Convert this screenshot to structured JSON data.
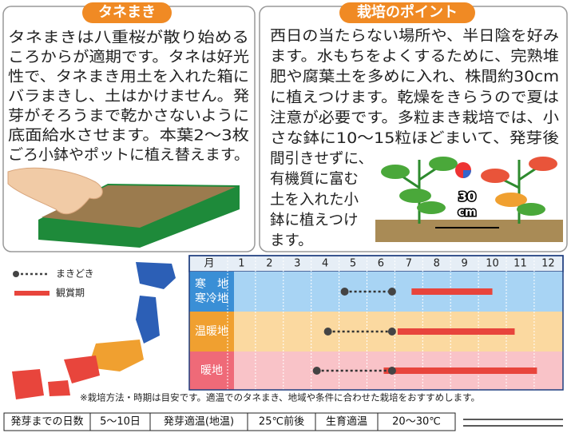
{
  "sowing_panel": {
    "title": "タネまき",
    "lines": [
      "タネまきは八重桜が散り始める",
      "ころからが適期です。タネは好光",
      "性で、タネまき用土を入れた箱に",
      "バラまきし、土はかけません。発",
      "芽がそろうまで乾かさないように",
      "底面給水させます。本葉2～3枚",
      "ごろ小鉢やポットに植え替えます。"
    ]
  },
  "points_panel": {
    "title": "栽培のポイント",
    "lines": [
      "西日の当たらない場所や、半日陰を好み",
      "ます。水もちをよくするために、完熟堆",
      "肥や腐葉土を多めに入れ、株間約30cm",
      "に植えつけます。乾燥をきらうので夏は",
      "注意が必要です。多粒まき栽培では、小",
      "さな鉢に10～15粒ほどまいて、発芽後",
      "間引きせずに、",
      "有機質に富む",
      "土を入れた小",
      "鉢に植えつけ",
      "ます。"
    ],
    "spacing_label": [
      "30",
      "cm"
    ]
  },
  "legend": {
    "sowing": "まきどき",
    "viewing": "観賞期"
  },
  "schedule": {
    "month_header": "月",
    "months": [
      1,
      2,
      3,
      4,
      5,
      6,
      7,
      8,
      9,
      10,
      11,
      12
    ],
    "rows": [
      {
        "labels": [
          "寒　地",
          "寒冷地"
        ],
        "sowing": [
          5.2,
          6.9
        ],
        "viewing": [
          7.6,
          10.5
        ]
      },
      {
        "labels": [
          "温暖地"
        ],
        "sowing": [
          4.6,
          6.9
        ],
        "viewing": [
          7.1,
          11.3
        ]
      },
      {
        "labels": [
          "暖地"
        ],
        "sowing": [
          4.2,
          6.9
        ],
        "viewing": [
          6.6,
          12.1
        ]
      }
    ]
  },
  "note": "※栽培方法・時期は目安です。適温でのタネまき、地域や条件に合わせた栽培をおすすめします。",
  "specs": [
    "発芽までの日数",
    "5～10日",
    "発芽適温(地温)",
    "25℃前後",
    "生育適温",
    "20～30℃"
  ]
}
